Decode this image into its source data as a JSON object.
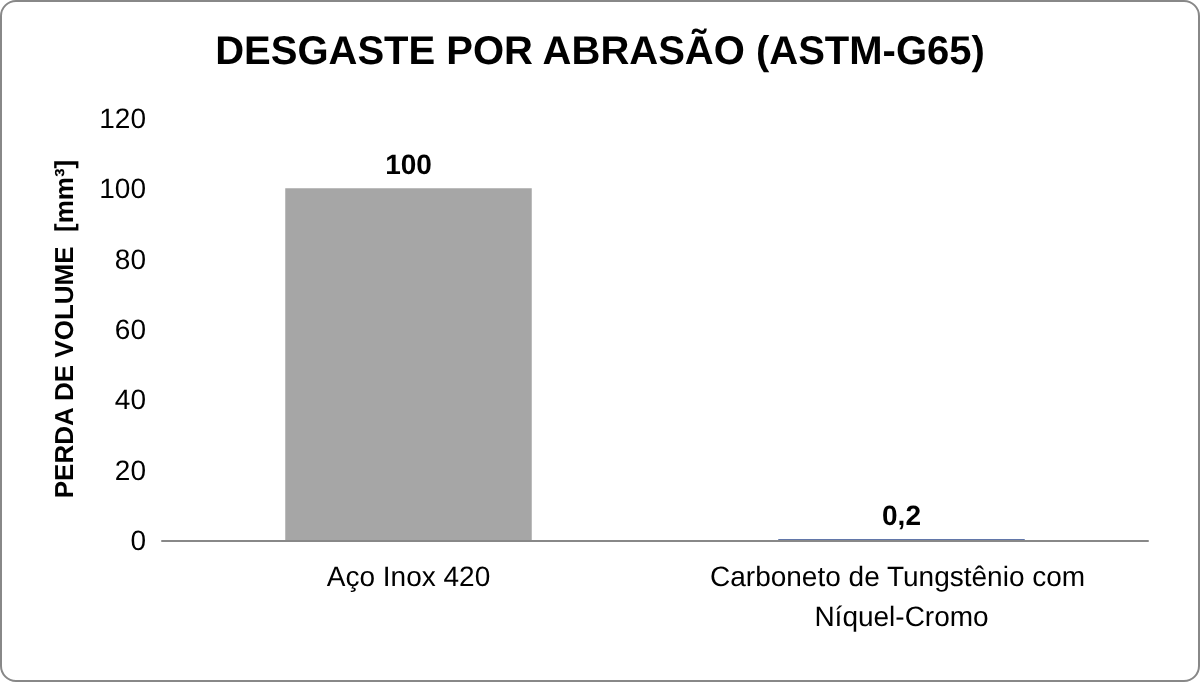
{
  "chart_data": {
    "type": "bar",
    "title": "DESGASTE POR ABRASÃO (ASTM-G65)",
    "ylabel": "PERDA DE VOLUME  [mm³]",
    "categories": [
      "Aço Inox 420",
      "Carboneto de Tungstênio com Níquel-Cromo"
    ],
    "values": [
      100,
      0.2
    ],
    "colors": [
      "#a6a6a6",
      "#2e4a8c"
    ],
    "value_labels": [
      "100",
      "0,2"
    ],
    "ylim": [
      0,
      120
    ],
    "yticks": [
      0,
      20,
      40,
      60,
      80,
      100,
      120
    ]
  }
}
